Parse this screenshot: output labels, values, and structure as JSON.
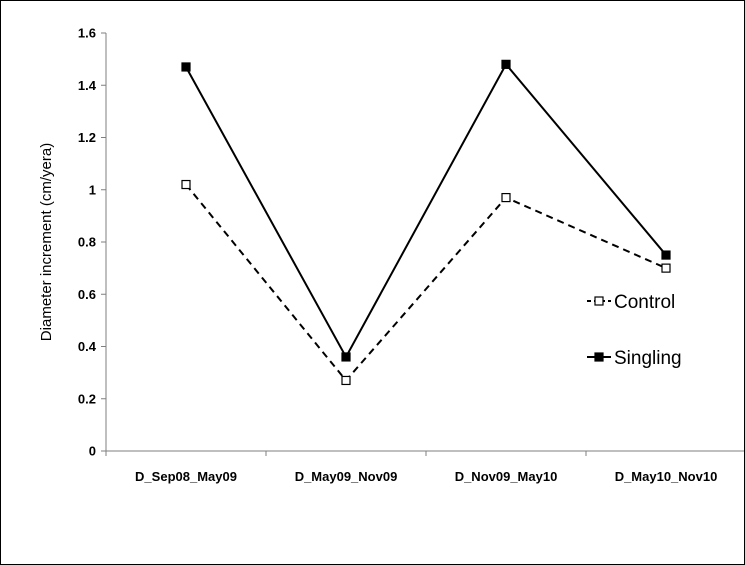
{
  "chart_data": {
    "type": "line",
    "title": "",
    "xlabel": "",
    "ylabel": "Diameter increment (cm/yera)",
    "categories": [
      "D_Sep08_May09",
      "D_May09_Nov09",
      "D_Nov09_May10",
      "D_May10_Nov10"
    ],
    "ylim": [
      0,
      1.6
    ],
    "yticks": [
      0,
      0.2,
      0.4,
      0.6,
      0.8,
      1,
      1.2,
      1.4,
      1.6
    ],
    "ytick_labels": [
      "0",
      "0.2",
      "0.4",
      "0.6",
      "0.8",
      "1",
      "1.2",
      "1.4",
      "1.6"
    ],
    "grid": false,
    "legend_position": "right",
    "series": [
      {
        "name": "Control",
        "values": [
          1.02,
          0.27,
          0.97,
          0.7
        ],
        "line_style": "dashed",
        "marker": "open-square",
        "color": "#000000"
      },
      {
        "name": "Singling",
        "values": [
          1.47,
          0.36,
          1.48,
          0.75
        ],
        "line_style": "solid",
        "marker": "filled-square",
        "color": "#000000"
      }
    ]
  }
}
